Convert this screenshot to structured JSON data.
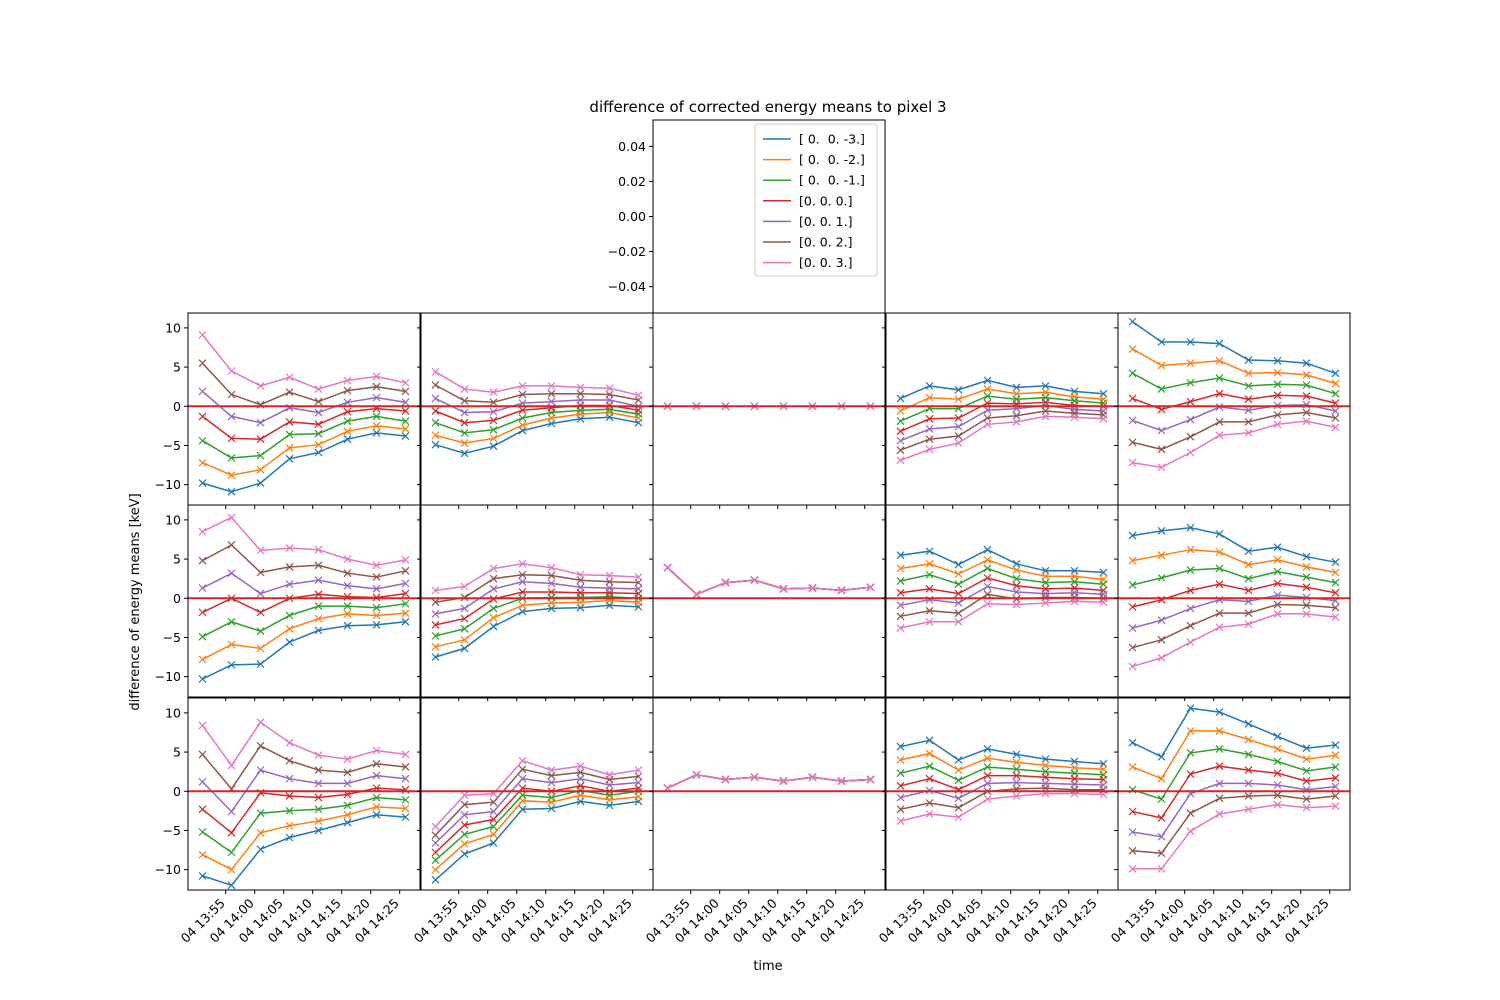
{
  "figure": {
    "title": "difference of corrected energy means to pixel 3",
    "ylabel": "difference of energy means [keV]",
    "xlabel": "time",
    "zero_line_color": "#d62728",
    "background": "#ffffff"
  },
  "chart_data": {
    "type": "line",
    "marker": "x",
    "title": "difference of corrected energy means to pixel 3",
    "xlabel": "time",
    "ylabel": "difference of energy means [keV]",
    "x_tick_labels": [
      "04 13:55",
      "04 14:00",
      "04 14:05",
      "04 14:10",
      "04 14:15",
      "04 14:20",
      "04 14:25"
    ],
    "x_tick_minutes": [
      5,
      10,
      15,
      20,
      25,
      30,
      35
    ],
    "x_minutes": [
      1,
      6,
      11,
      16,
      21,
      26,
      31,
      36
    ],
    "x_range_minutes": [
      -1.5,
      38.5
    ],
    "ylim": [
      -12.6,
      11.9
    ],
    "y_ticks": [
      -10,
      -5,
      0,
      5,
      10
    ],
    "legend": {
      "placement": "top-right of top panel",
      "entries": [
        "[ 0.  0. -3.]",
        "[ 0.  0. -2.]",
        "[ 0.  0. -1.]",
        "[0. 0. 0.]",
        "[0. 0. 1.]",
        "[0. 0. 2.]",
        "[0. 0. 3.]"
      ]
    },
    "series_colors": [
      "#1f77b4",
      "#ff7f0e",
      "#2ca02c",
      "#d62728",
      "#9467bd",
      "#8c564b",
      "#e377c2"
    ],
    "top_panel": {
      "ylim": [
        -0.055,
        0.055
      ],
      "y_ticks": [
        -0.04,
        -0.02,
        0.0,
        0.02,
        0.04
      ],
      "y_tick_labels": [
        "−0.04",
        "−0.02",
        "0.00",
        "0.02",
        "0.04"
      ]
    },
    "panels": [
      {
        "row": 0,
        "col": 0,
        "series": [
          [
            -9.8,
            -10.9,
            -9.8,
            -6.7,
            -5.9,
            -4.2,
            -3.4,
            -3.8
          ],
          [
            -7.2,
            -8.8,
            -8.1,
            -5.3,
            -4.9,
            -3.2,
            -2.5,
            -2.9
          ],
          [
            -4.4,
            -6.6,
            -6.3,
            -3.6,
            -3.5,
            -1.9,
            -1.3,
            -1.9
          ],
          [
            -1.3,
            -4.1,
            -4.2,
            -2.0,
            -2.3,
            -0.7,
            -0.3,
            -0.6
          ],
          [
            1.9,
            -1.3,
            -2.1,
            -0.2,
            -0.8,
            0.5,
            1.1,
            0.5
          ],
          [
            5.5,
            1.5,
            0.2,
            1.8,
            0.6,
            2.0,
            2.5,
            1.9
          ],
          [
            9.1,
            4.5,
            2.6,
            3.7,
            2.2,
            3.3,
            3.8,
            3.0
          ]
        ]
      },
      {
        "row": 0,
        "col": 1,
        "series": [
          [
            -4.9,
            -6.0,
            -5.1,
            -3.1,
            -2.2,
            -1.6,
            -1.4,
            -2.1
          ],
          [
            -3.7,
            -4.7,
            -4.1,
            -2.4,
            -1.5,
            -1.0,
            -0.8,
            -1.5
          ],
          [
            -2.1,
            -3.4,
            -3.0,
            -1.5,
            -0.8,
            -0.5,
            -0.4,
            -1.0
          ],
          [
            -0.6,
            -2.1,
            -1.8,
            -0.5,
            -0.2,
            0.1,
            0.1,
            -0.5
          ],
          [
            1.0,
            -0.8,
            -0.7,
            0.4,
            0.6,
            0.8,
            0.8,
            0.0
          ],
          [
            2.7,
            0.7,
            0.5,
            1.5,
            1.6,
            1.6,
            1.5,
            0.8
          ],
          [
            4.4,
            2.2,
            1.8,
            2.6,
            2.6,
            2.4,
            2.3,
            1.4
          ]
        ]
      },
      {
        "row": 0,
        "col": 2,
        "series": [
          [
            0,
            0,
            0,
            0,
            0,
            0,
            0,
            0
          ],
          [
            0,
            0,
            0,
            0,
            0,
            0,
            0,
            0
          ],
          [
            0,
            0,
            0,
            0,
            0,
            0,
            0,
            0
          ],
          [
            0,
            0,
            0,
            0,
            0,
            0,
            0,
            0
          ],
          [
            0,
            0,
            0,
            0,
            0,
            0,
            0,
            0
          ],
          [
            0,
            0,
            0,
            0,
            0,
            0,
            0,
            0
          ],
          [
            0,
            0,
            0,
            0,
            0,
            0,
            0,
            0
          ]
        ]
      },
      {
        "row": 0,
        "col": 3,
        "series": [
          [
            1.0,
            2.6,
            2.1,
            3.3,
            2.4,
            2.6,
            1.9,
            1.6
          ],
          [
            -0.6,
            1.1,
            0.9,
            2.2,
            1.6,
            1.8,
            1.2,
            0.9
          ],
          [
            -1.9,
            -0.3,
            -0.3,
            1.3,
            0.9,
            1.1,
            0.7,
            0.4
          ],
          [
            -3.2,
            -1.6,
            -1.5,
            0.4,
            0.3,
            0.5,
            0.1,
            0.0
          ],
          [
            -4.4,
            -2.9,
            -2.6,
            -0.5,
            -0.3,
            0.1,
            -0.4,
            -0.6
          ],
          [
            -5.6,
            -4.2,
            -3.8,
            -1.5,
            -1.2,
            -0.6,
            -0.9,
            -1.1
          ],
          [
            -6.9,
            -5.5,
            -4.7,
            -2.3,
            -2.0,
            -1.3,
            -1.4,
            -1.6
          ]
        ]
      },
      {
        "row": 0,
        "col": 4,
        "series": [
          [
            10.8,
            8.2,
            8.2,
            8.0,
            5.9,
            5.8,
            5.5,
            4.2
          ],
          [
            7.3,
            5.2,
            5.5,
            5.8,
            4.2,
            4.3,
            4.0,
            2.9
          ],
          [
            4.2,
            2.2,
            3.0,
            3.6,
            2.6,
            2.8,
            2.7,
            1.6
          ],
          [
            1.0,
            -0.4,
            0.6,
            1.6,
            0.9,
            1.4,
            1.3,
            0.4
          ],
          [
            -1.8,
            -3.1,
            -1.7,
            -0.1,
            -0.5,
            0.1,
            0.2,
            -0.6
          ],
          [
            -4.6,
            -5.5,
            -3.9,
            -2.0,
            -2.0,
            -1.1,
            -0.8,
            -1.5
          ],
          [
            -7.2,
            -7.8,
            -5.9,
            -3.7,
            -3.4,
            -2.3,
            -1.9,
            -2.7
          ]
        ]
      },
      {
        "row": 1,
        "col": 0,
        "series": [
          [
            -10.3,
            -8.5,
            -8.4,
            -5.6,
            -4.1,
            -3.5,
            -3.4,
            -3.0
          ],
          [
            -7.8,
            -5.9,
            -6.4,
            -3.9,
            -2.6,
            -2.0,
            -2.2,
            -1.9
          ],
          [
            -4.9,
            -3.0,
            -4.2,
            -2.2,
            -1.0,
            -1.0,
            -1.2,
            -0.7
          ],
          [
            -1.8,
            0.0,
            -1.8,
            0.0,
            0.5,
            0.2,
            0.1,
            0.6
          ],
          [
            1.3,
            3.2,
            0.6,
            1.8,
            2.3,
            1.6,
            1.2,
            1.9
          ],
          [
            4.8,
            6.8,
            3.3,
            4.0,
            4.2,
            3.2,
            2.7,
            3.5
          ],
          [
            8.5,
            10.3,
            6.1,
            6.4,
            6.2,
            5.0,
            4.2,
            4.9
          ]
        ]
      },
      {
        "row": 1,
        "col": 1,
        "series": [
          [
            -7.5,
            -6.4,
            -3.6,
            -1.7,
            -1.3,
            -1.2,
            -0.9,
            -1.1
          ],
          [
            -6.2,
            -5.3,
            -2.5,
            -0.9,
            -0.6,
            -0.5,
            -0.3,
            -0.5
          ],
          [
            -4.8,
            -3.9,
            -1.3,
            0.0,
            0.1,
            0.1,
            0.2,
            0.0
          ],
          [
            -3.4,
            -2.6,
            -0.1,
            0.8,
            0.8,
            0.7,
            0.7,
            0.6
          ],
          [
            -2.0,
            -1.3,
            1.2,
            2.1,
            1.9,
            1.4,
            1.3,
            1.2
          ],
          [
            -0.5,
            0.1,
            2.5,
            3.0,
            2.9,
            2.3,
            2.1,
            2.0
          ],
          [
            1.0,
            1.5,
            3.8,
            4.4,
            3.9,
            3.0,
            2.9,
            2.7
          ]
        ]
      },
      {
        "row": 1,
        "col": 2,
        "series": [
          [
            3.9,
            0.5,
            2.0,
            2.3,
            1.2,
            1.3,
            1.0,
            1.4
          ],
          [
            3.9,
            0.5,
            2.0,
            2.3,
            1.2,
            1.3,
            1.0,
            1.4
          ],
          [
            3.9,
            0.5,
            2.0,
            2.3,
            1.2,
            1.3,
            1.0,
            1.4
          ],
          [
            3.9,
            0.5,
            2.0,
            2.3,
            1.2,
            1.3,
            1.0,
            1.4
          ],
          [
            3.9,
            0.5,
            2.0,
            2.3,
            1.2,
            1.3,
            1.0,
            1.4
          ],
          [
            3.9,
            0.5,
            2.0,
            2.3,
            1.2,
            1.3,
            1.0,
            1.4
          ],
          [
            3.9,
            0.5,
            2.0,
            2.3,
            1.2,
            1.3,
            1.0,
            1.4
          ]
        ]
      },
      {
        "row": 1,
        "col": 3,
        "series": [
          [
            5.5,
            6.0,
            4.3,
            6.2,
            4.4,
            3.5,
            3.5,
            3.3
          ],
          [
            3.8,
            4.4,
            3.1,
            4.9,
            3.6,
            2.8,
            2.8,
            2.4
          ],
          [
            2.2,
            3.0,
            1.8,
            3.8,
            2.5,
            2.0,
            2.1,
            1.8
          ],
          [
            0.7,
            1.2,
            0.6,
            2.6,
            1.6,
            1.2,
            1.3,
            1.0
          ],
          [
            -0.9,
            -0.2,
            -0.6,
            1.5,
            0.8,
            0.6,
            0.7,
            0.5
          ],
          [
            -2.3,
            -1.6,
            -1.9,
            0.5,
            -0.1,
            0.1,
            0.1,
            0.0
          ],
          [
            -3.8,
            -3.0,
            -3.0,
            -0.7,
            -0.8,
            -0.6,
            -0.4,
            -0.5
          ]
        ]
      },
      {
        "row": 1,
        "col": 4,
        "series": [
          [
            8.0,
            8.6,
            9.0,
            8.2,
            6.0,
            6.5,
            5.3,
            4.6
          ],
          [
            4.8,
            5.5,
            6.2,
            5.9,
            4.3,
            4.9,
            4.0,
            3.3
          ],
          [
            1.7,
            2.6,
            3.6,
            3.8,
            2.5,
            3.4,
            2.7,
            2.0
          ],
          [
            -1.1,
            -0.2,
            1.0,
            1.8,
            1.0,
            1.9,
            1.4,
            0.7
          ],
          [
            -3.8,
            -2.8,
            -1.3,
            -0.2,
            -0.4,
            0.4,
            0.1,
            -0.3
          ],
          [
            -6.3,
            -5.3,
            -3.5,
            -1.9,
            -1.9,
            -0.8,
            -0.9,
            -1.2
          ],
          [
            -8.7,
            -7.6,
            -5.6,
            -3.7,
            -3.3,
            -2.0,
            -2.0,
            -2.4
          ]
        ]
      },
      {
        "row": 2,
        "col": 0,
        "series": [
          [
            -10.8,
            -12.0,
            -7.4,
            -5.9,
            -5.0,
            -4.0,
            -3.0,
            -3.3
          ],
          [
            -8.1,
            -10.0,
            -5.3,
            -4.4,
            -3.8,
            -3.0,
            -2.0,
            -2.2
          ],
          [
            -5.2,
            -7.8,
            -2.8,
            -2.5,
            -2.3,
            -1.8,
            -0.8,
            -1.1
          ],
          [
            -2.3,
            -5.3,
            -0.2,
            -0.6,
            -0.8,
            -0.4,
            0.4,
            0.2
          ],
          [
            1.2,
            -2.6,
            2.7,
            1.6,
            1.0,
            1.0,
            2.0,
            1.6
          ],
          [
            4.7,
            0.3,
            5.8,
            3.9,
            2.7,
            2.4,
            3.5,
            3.1
          ],
          [
            8.4,
            3.3,
            8.8,
            6.2,
            4.6,
            4.1,
            5.2,
            4.7
          ]
        ]
      },
      {
        "row": 2,
        "col": 1,
        "series": [
          [
            -11.3,
            -8.0,
            -6.6,
            -2.3,
            -2.2,
            -1.3,
            -1.8,
            -1.3
          ],
          [
            -10.0,
            -6.7,
            -5.5,
            -1.2,
            -1.4,
            -0.5,
            -1.1,
            -0.7
          ],
          [
            -8.8,
            -5.5,
            -4.5,
            -0.5,
            -0.8,
            0.1,
            -0.5,
            0.0
          ],
          [
            -7.8,
            -4.3,
            -3.6,
            0.4,
            0.0,
            0.7,
            0.0,
            0.4
          ],
          [
            -6.6,
            -3.0,
            -2.6,
            1.6,
            1.1,
            1.6,
            0.8,
            1.1
          ],
          [
            -5.6,
            -1.7,
            -1.4,
            2.8,
            2.0,
            2.4,
            1.5,
            1.9
          ],
          [
            -4.5,
            -0.5,
            -0.3,
            3.9,
            2.7,
            3.2,
            2.1,
            2.7
          ]
        ]
      },
      {
        "row": 2,
        "col": 2,
        "series": [
          [
            0.4,
            2.1,
            1.5,
            1.8,
            1.3,
            1.8,
            1.3,
            1.5
          ],
          [
            0.4,
            2.1,
            1.5,
            1.8,
            1.3,
            1.8,
            1.3,
            1.5
          ],
          [
            0.4,
            2.1,
            1.5,
            1.8,
            1.3,
            1.8,
            1.3,
            1.5
          ],
          [
            0.4,
            2.1,
            1.5,
            1.8,
            1.3,
            1.8,
            1.3,
            1.5
          ],
          [
            0.4,
            2.1,
            1.5,
            1.8,
            1.3,
            1.8,
            1.3,
            1.5
          ],
          [
            0.4,
            2.1,
            1.5,
            1.8,
            1.3,
            1.8,
            1.3,
            1.5
          ],
          [
            0.4,
            2.1,
            1.5,
            1.8,
            1.3,
            1.8,
            1.3,
            1.5
          ]
        ]
      },
      {
        "row": 2,
        "col": 3,
        "series": [
          [
            5.7,
            6.5,
            4.0,
            5.4,
            4.7,
            4.1,
            3.8,
            3.5
          ],
          [
            4.0,
            4.8,
            2.7,
            4.2,
            3.7,
            3.3,
            3.0,
            2.8
          ],
          [
            2.3,
            3.2,
            1.4,
            3.1,
            2.8,
            2.5,
            2.3,
            2.1
          ],
          [
            0.7,
            1.6,
            0.2,
            2.0,
            2.0,
            1.8,
            1.6,
            1.5
          ],
          [
            -0.8,
            0.1,
            -0.9,
            1.0,
            1.1,
            1.0,
            0.9,
            0.8
          ],
          [
            -2.3,
            -1.5,
            -2.1,
            0.0,
            0.3,
            0.4,
            0.2,
            0.2
          ],
          [
            -3.8,
            -2.9,
            -3.3,
            -1.0,
            -0.6,
            -0.3,
            -0.3,
            -0.4
          ]
        ]
      },
      {
        "row": 2,
        "col": 4,
        "series": [
          [
            6.2,
            4.4,
            10.6,
            10.1,
            8.6,
            7.0,
            5.5,
            5.9
          ],
          [
            3.1,
            1.6,
            7.7,
            7.7,
            6.6,
            5.4,
            4.1,
            4.6
          ],
          [
            0.2,
            -1.0,
            4.9,
            5.4,
            4.7,
            3.8,
            2.6,
            3.1
          ],
          [
            -2.6,
            -3.4,
            2.2,
            3.2,
            2.7,
            2.3,
            1.3,
            1.7
          ],
          [
            -5.2,
            -5.8,
            -0.3,
            1.0,
            1.0,
            0.8,
            0.2,
            0.6
          ],
          [
            -7.6,
            -7.9,
            -2.8,
            -0.9,
            -0.6,
            -0.5,
            -1.0,
            -0.6
          ],
          [
            -9.9,
            -9.9,
            -5.1,
            -2.9,
            -2.3,
            -1.7,
            -2.1,
            -1.9
          ]
        ]
      }
    ]
  }
}
